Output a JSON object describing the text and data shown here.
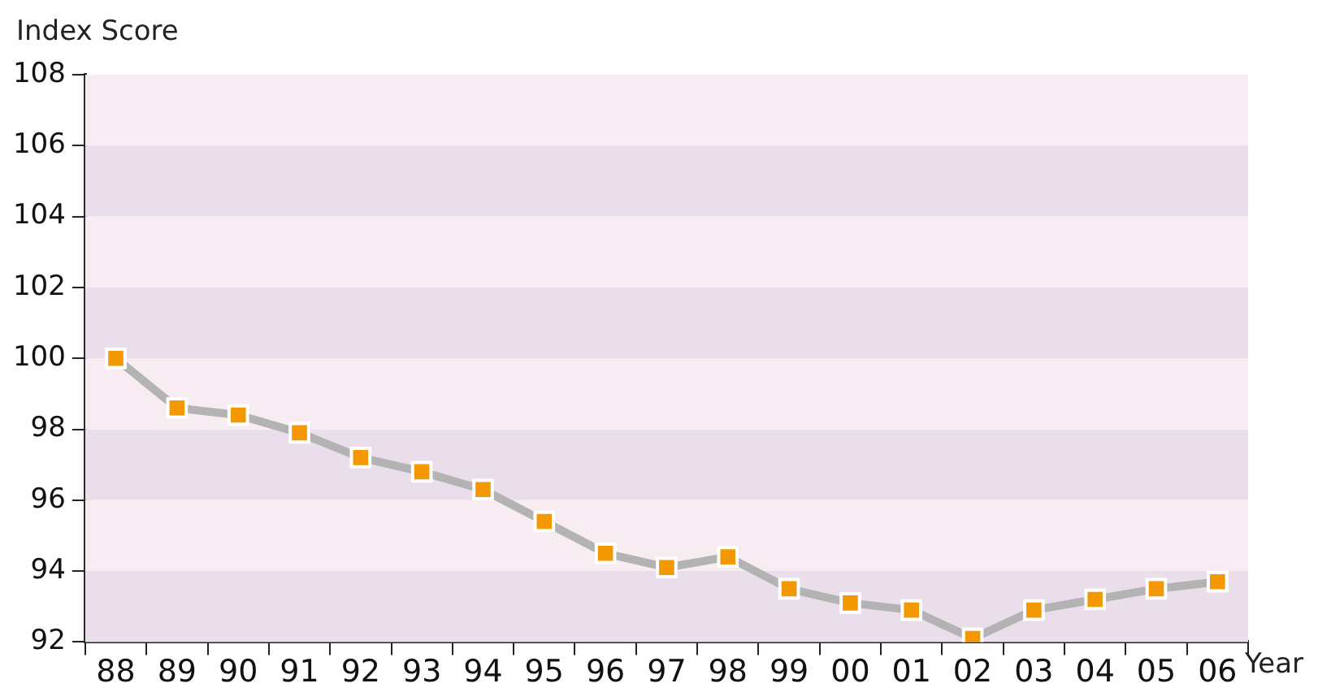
{
  "chart_data": {
    "type": "line",
    "xlabel": "Year",
    "ylabel": "Index Score",
    "categories": [
      "88",
      "89",
      "90",
      "91",
      "92",
      "93",
      "94",
      "95",
      "96",
      "97",
      "98",
      "99",
      "00",
      "01",
      "02",
      "03",
      "04",
      "05",
      "06"
    ],
    "series": [
      {
        "color": "#f39800",
        "values": [
          100.0,
          98.6,
          98.4,
          97.9,
          97.2,
          96.8,
          96.3,
          95.4,
          94.5,
          94.1,
          94.4,
          93.5,
          93.1,
          92.9,
          92.1,
          92.9,
          93.2,
          93.5,
          93.7
        ]
      }
    ],
    "ylim": [
      92,
      108
    ],
    "yticks": [
      92,
      94,
      96,
      98,
      100,
      102,
      104,
      106,
      108
    ],
    "legend": false,
    "marker": "square",
    "line_style": "solid"
  }
}
